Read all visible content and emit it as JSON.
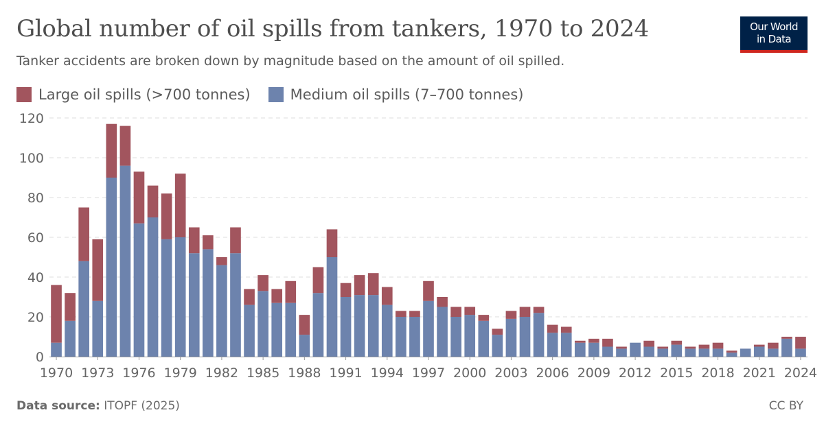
{
  "header": {
    "title": "Global number of oil spills from tankers, 1970 to 2024",
    "subtitle": "Tanker accidents are broken down by magnitude based on the amount of oil spilled."
  },
  "logo": {
    "line1": "Our World",
    "line2": "in Data"
  },
  "footer": {
    "source_label": "Data source:",
    "source_value": " ITOPF (2025)",
    "license": "CC BY"
  },
  "colors": {
    "large": "#a2555e",
    "medium": "#6d83ad",
    "grid": "#dddddd",
    "axis": "#999999",
    "tick_text": "#666666",
    "logo_bg": "#002147",
    "logo_accent": "#ce261e"
  },
  "chart_data": {
    "type": "bar",
    "stacked": true,
    "title": "Global number of oil spills from tankers, 1970 to 2024",
    "subtitle": "Tanker accidents are broken down by magnitude based on the amount of oil spilled.",
    "legend_position": "top-left",
    "grid": true,
    "ylim": [
      0,
      120
    ],
    "yticks": [
      0,
      20,
      40,
      60,
      80,
      100,
      120
    ],
    "xticks": [
      1970,
      1973,
      1976,
      1979,
      1982,
      1985,
      1988,
      1991,
      1994,
      1997,
      2000,
      2003,
      2006,
      2009,
      2012,
      2015,
      2018,
      2021,
      2024
    ],
    "categories": [
      1970,
      1971,
      1972,
      1973,
      1974,
      1975,
      1976,
      1977,
      1978,
      1979,
      1980,
      1981,
      1982,
      1983,
      1984,
      1985,
      1986,
      1987,
      1988,
      1989,
      1990,
      1991,
      1992,
      1993,
      1994,
      1995,
      1996,
      1997,
      1998,
      1999,
      2000,
      2001,
      2002,
      2003,
      2004,
      2005,
      2006,
      2007,
      2008,
      2009,
      2010,
      2011,
      2012,
      2013,
      2014,
      2015,
      2016,
      2017,
      2018,
      2019,
      2020,
      2021,
      2022,
      2023,
      2024
    ],
    "series": [
      {
        "name": "Medium oil spills (7–700 tonnes)",
        "values": [
          7,
          18,
          48,
          28,
          90,
          96,
          67,
          70,
          59,
          60,
          52,
          54,
          46,
          52,
          26,
          33,
          27,
          27,
          11,
          32,
          50,
          30,
          31,
          31,
          26,
          20,
          20,
          28,
          25,
          20,
          21,
          18,
          11,
          19,
          20,
          22,
          12,
          12,
          7,
          7,
          5,
          4,
          7,
          5,
          4,
          6,
          4,
          4,
          4,
          2,
          4,
          5,
          4,
          9,
          4
        ]
      },
      {
        "name": "Large oil spills (>700 tonnes)",
        "values": [
          29,
          14,
          27,
          31,
          27,
          20,
          26,
          16,
          23,
          32,
          13,
          7,
          4,
          13,
          8,
          8,
          7,
          11,
          10,
          13,
          14,
          7,
          10,
          11,
          9,
          3,
          3,
          10,
          5,
          5,
          4,
          3,
          3,
          4,
          5,
          3,
          4,
          3,
          1,
          2,
          4,
          1,
          0,
          3,
          1,
          2,
          1,
          2,
          3,
          1,
          0,
          1,
          3,
          1,
          6
        ]
      }
    ]
  }
}
